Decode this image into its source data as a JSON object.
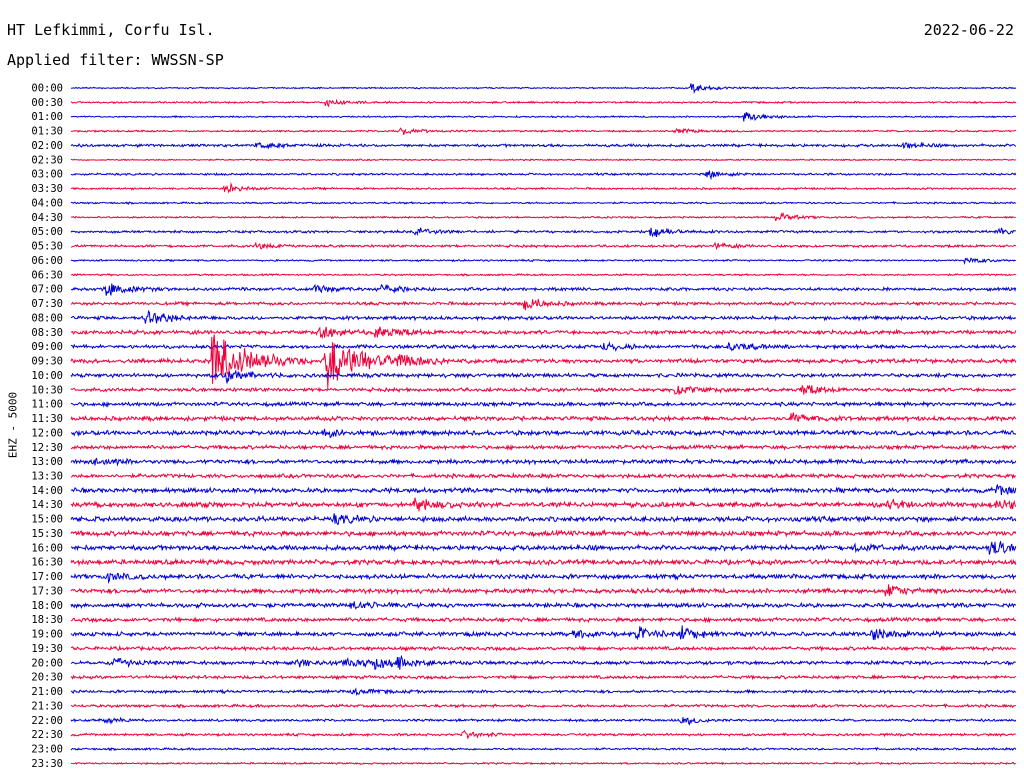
{
  "header": {
    "station": "HT Lefkimmi, Corfu Isl.",
    "date": "2022-06-22",
    "filter": "Applied filter: WWSSN-SP"
  },
  "chart_data": {
    "type": "line",
    "title": "HT Lefkimmi, Corfu Isl.",
    "ylabel": "EHZ - 5000",
    "colors": {
      "odd_hour": "#0000d4",
      "half_hour": "#f0003a"
    },
    "trace_times": [
      "00:00",
      "00:30",
      "01:00",
      "01:30",
      "02:00",
      "02:30",
      "03:00",
      "03:30",
      "04:00",
      "04:30",
      "05:00",
      "05:30",
      "06:00",
      "06:30",
      "07:00",
      "07:30",
      "08:00",
      "08:30",
      "09:00",
      "09:30",
      "10:00",
      "10:30",
      "11:00",
      "11:30",
      "12:00",
      "12:30",
      "13:00",
      "13:30",
      "14:00",
      "14:30",
      "15:00",
      "15:30",
      "16:00",
      "16:30",
      "17:00",
      "17:30",
      "18:00",
      "18:30",
      "19:00",
      "19:30",
      "20:00",
      "20:30",
      "21:00",
      "21:30",
      "22:00",
      "22:30",
      "23:00",
      "23:30"
    ],
    "noise_level": [
      0.8,
      1.0,
      0.9,
      1.0,
      1.6,
      0.8,
      1.2,
      1.1,
      1.0,
      1.0,
      1.4,
      1.4,
      1.0,
      1.0,
      1.8,
      1.8,
      2.0,
      2.2,
      2.0,
      2.4,
      2.2,
      2.0,
      2.2,
      2.4,
      2.6,
      2.2,
      2.4,
      2.2,
      2.6,
      2.8,
      2.8,
      2.8,
      2.8,
      2.8,
      2.6,
      2.6,
      2.4,
      2.2,
      2.4,
      2.0,
      2.0,
      1.8,
      1.6,
      1.6,
      1.4,
      1.4,
      1.2,
      1.0
    ],
    "events": [
      {
        "trace": "00:00",
        "minute": 19.8,
        "amp": 4
      },
      {
        "trace": "00:30",
        "minute": 8.2,
        "amp": 4
      },
      {
        "trace": "01:00",
        "minute": 21.5,
        "amp": 6
      },
      {
        "trace": "01:30",
        "minute": 10.5,
        "amp": 4
      },
      {
        "trace": "01:30",
        "minute": 19.3,
        "amp": 3
      },
      {
        "trace": "02:00",
        "minute": 6.0,
        "amp": 3
      },
      {
        "trace": "02:00",
        "minute": 26.5,
        "amp": 3
      },
      {
        "trace": "03:00",
        "minute": 20.3,
        "amp": 4
      },
      {
        "trace": "03:30",
        "minute": 5.0,
        "amp": 5
      },
      {
        "trace": "04:30",
        "minute": 22.5,
        "amp": 4
      },
      {
        "trace": "05:00",
        "minute": 11.0,
        "amp": 4
      },
      {
        "trace": "05:00",
        "minute": 18.5,
        "amp": 5
      },
      {
        "trace": "05:00",
        "minute": 29.5,
        "amp": 4
      },
      {
        "trace": "05:30",
        "minute": 6.0,
        "amp": 3
      },
      {
        "trace": "05:30",
        "minute": 20.5,
        "amp": 3
      },
      {
        "trace": "06:00",
        "minute": 28.5,
        "amp": 3
      },
      {
        "trace": "07:00",
        "minute": 1.2,
        "amp": 9
      },
      {
        "trace": "07:00",
        "minute": 7.8,
        "amp": 4
      },
      {
        "trace": "07:00",
        "minute": 10.0,
        "amp": 4
      },
      {
        "trace": "07:30",
        "minute": 14.5,
        "amp": 7
      },
      {
        "trace": "08:00",
        "minute": 2.5,
        "amp": 9
      },
      {
        "trace": "08:30",
        "minute": 8.0,
        "amp": 6
      },
      {
        "trace": "08:30",
        "minute": 9.8,
        "amp": 7
      },
      {
        "trace": "09:00",
        "minute": 17.0,
        "amp": 5
      },
      {
        "trace": "09:00",
        "minute": 21.0,
        "amp": 5
      },
      {
        "trace": "09:30",
        "minute": 4.6,
        "amp": 34
      },
      {
        "trace": "09:30",
        "minute": 8.2,
        "amp": 30
      },
      {
        "trace": "09:30",
        "minute": 10.5,
        "amp": 6
      },
      {
        "trace": "10:00",
        "minute": 5.0,
        "amp": 8
      },
      {
        "trace": "10:30",
        "minute": 19.3,
        "amp": 6
      },
      {
        "trace": "10:30",
        "minute": 23.3,
        "amp": 5
      },
      {
        "trace": "11:30",
        "minute": 23.0,
        "amp": 5
      },
      {
        "trace": "12:00",
        "minute": 8.2,
        "amp": 4
      },
      {
        "trace": "13:00",
        "minute": 0.8,
        "amp": 4
      },
      {
        "trace": "14:00",
        "minute": 29.5,
        "amp": 5
      },
      {
        "trace": "14:30",
        "minute": 11.0,
        "amp": 6
      },
      {
        "trace": "14:30",
        "minute": 26.0,
        "amp": 5
      },
      {
        "trace": "14:30",
        "minute": 29.5,
        "amp": 6
      },
      {
        "trace": "15:00",
        "minute": 8.5,
        "amp": 5
      },
      {
        "trace": "16:00",
        "minute": 29.3,
        "amp": 7
      },
      {
        "trace": "16:00",
        "minute": 25.0,
        "amp": 4
      },
      {
        "trace": "17:00",
        "minute": 1.2,
        "amp": 4
      },
      {
        "trace": "17:30",
        "minute": 26.0,
        "amp": 6
      },
      {
        "trace": "18:00",
        "minute": 9.0,
        "amp": 4
      },
      {
        "trace": "19:00",
        "minute": 16.0,
        "amp": 5
      },
      {
        "trace": "19:00",
        "minute": 18.0,
        "amp": 8
      },
      {
        "trace": "19:00",
        "minute": 19.5,
        "amp": 6
      },
      {
        "trace": "19:00",
        "minute": 25.5,
        "amp": 6
      },
      {
        "trace": "20:00",
        "minute": 1.5,
        "amp": 5
      },
      {
        "trace": "20:00",
        "minute": 7.2,
        "amp": 5
      },
      {
        "trace": "20:00",
        "minute": 8.8,
        "amp": 6
      },
      {
        "trace": "20:00",
        "minute": 9.8,
        "amp": 5
      },
      {
        "trace": "20:00",
        "minute": 10.5,
        "amp": 5
      },
      {
        "trace": "21:00",
        "minute": 9.0,
        "amp": 4
      },
      {
        "trace": "22:00",
        "minute": 1.2,
        "amp": 3
      },
      {
        "trace": "22:00",
        "minute": 19.5,
        "amp": 4
      },
      {
        "trace": "22:30",
        "minute": 12.5,
        "amp": 4
      }
    ],
    "xlim_minutes": [
      0,
      30
    ]
  }
}
